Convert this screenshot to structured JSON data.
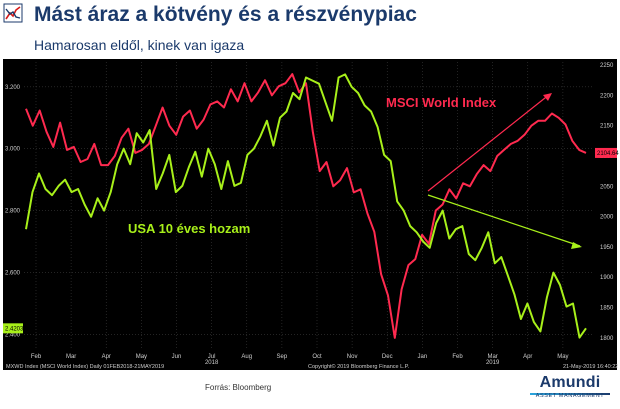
{
  "page": {
    "title": "Mást áraz a kötvény és a részvénypiac",
    "subtitle": "Hamarosan eldől, kinek van igaza",
    "source": "Forrás: Bloomberg",
    "brand": {
      "name": "Amundi",
      "tagline": "ASSET MANAGEMENT"
    }
  },
  "chart_data": {
    "type": "line",
    "background": "#000000",
    "grid": true,
    "footer_left": "MXWD Index (MSCI World Index)  Daily 01FEB2018-21MAY2019",
    "footer_center": "Copyright© 2019 Bloomberg Finance L.P.",
    "footer_right": "21-May-2019 16:40:22",
    "x_ticks": [
      "Feb",
      "Mar",
      "Apr",
      "May",
      "Jun",
      "Jul",
      "Aug",
      "Sep",
      "Oct",
      "Nov",
      "Dec",
      "Jan",
      "Feb",
      "Mar",
      "Apr",
      "May"
    ],
    "x_year_labels": [
      {
        "label": "2018",
        "at": "Jul"
      },
      {
        "label": "2019",
        "at": "Mar"
      }
    ],
    "y_left": {
      "ticks": [
        "3.200",
        "3.000",
        "2.800",
        "2.600",
        "2.400"
      ],
      "range": [
        2.35,
        3.28
      ]
    },
    "y_right": {
      "ticks": [
        "2250",
        "2200",
        "2150",
        "2100",
        "2050",
        "2000",
        "1950",
        "1900",
        "1850",
        "1800"
      ],
      "range": [
        1780,
        2255
      ]
    },
    "last_value_labels": {
      "left": "2.4203",
      "right": "2104.64"
    },
    "series": [
      {
        "name": "MSCI World Index",
        "axis": "right",
        "color": "#ff2a4f",
        "values": [
          2178,
          2150,
          2175,
          2140,
          2115,
          2155,
          2110,
          2115,
          2090,
          2095,
          2120,
          2085,
          2085,
          2100,
          2130,
          2145,
          2105,
          2110,
          2120,
          2150,
          2180,
          2150,
          2135,
          2165,
          2175,
          2145,
          2160,
          2185,
          2190,
          2180,
          2210,
          2190,
          2220,
          2190,
          2205,
          2225,
          2200,
          2215,
          2220,
          2235,
          2205,
          2220,
          2140,
          2075,
          2090,
          2050,
          2060,
          2080,
          2040,
          2045,
          2005,
          1975,
          1905,
          1870,
          1800,
          1880,
          1920,
          1930,
          1970,
          1955,
          2010,
          2020,
          2045,
          2030,
          2055,
          2050,
          2070,
          2085,
          2075,
          2100,
          2110,
          2120,
          2125,
          2135,
          2150,
          2158,
          2158,
          2170,
          2163,
          2152,
          2125,
          2110,
          2105
        ]
      },
      {
        "name": "USA 10 éves hozam",
        "axis": "left",
        "color": "#a8f01a",
        "values": [
          2.74,
          2.86,
          2.92,
          2.87,
          2.85,
          2.88,
          2.9,
          2.86,
          2.87,
          2.82,
          2.78,
          2.84,
          2.8,
          2.86,
          2.95,
          3.0,
          2.95,
          3.05,
          3.02,
          3.06,
          2.87,
          2.92,
          2.98,
          2.86,
          2.88,
          2.94,
          2.99,
          2.91,
          3.0,
          2.95,
          2.87,
          2.96,
          2.88,
          2.89,
          2.98,
          3.0,
          3.04,
          3.09,
          3.01,
          3.1,
          3.12,
          3.18,
          3.16,
          3.23,
          3.22,
          3.21,
          3.15,
          3.09,
          3.23,
          3.24,
          3.2,
          3.18,
          3.14,
          3.12,
          3.07,
          2.98,
          2.96,
          2.83,
          2.8,
          2.75,
          2.73,
          2.7,
          2.68,
          2.76,
          2.8,
          2.71,
          2.74,
          2.75,
          2.66,
          2.64,
          2.68,
          2.73,
          2.63,
          2.65,
          2.59,
          2.53,
          2.45,
          2.5,
          2.44,
          2.41,
          2.52,
          2.6,
          2.56,
          2.49,
          2.5,
          2.39,
          2.42
        ]
      }
    ],
    "annotations": [
      {
        "text": "MSCI World Index",
        "color": "#ff2a4f"
      },
      {
        "text": "USA 10 éves hozam",
        "color": "#a8f01a"
      }
    ]
  }
}
